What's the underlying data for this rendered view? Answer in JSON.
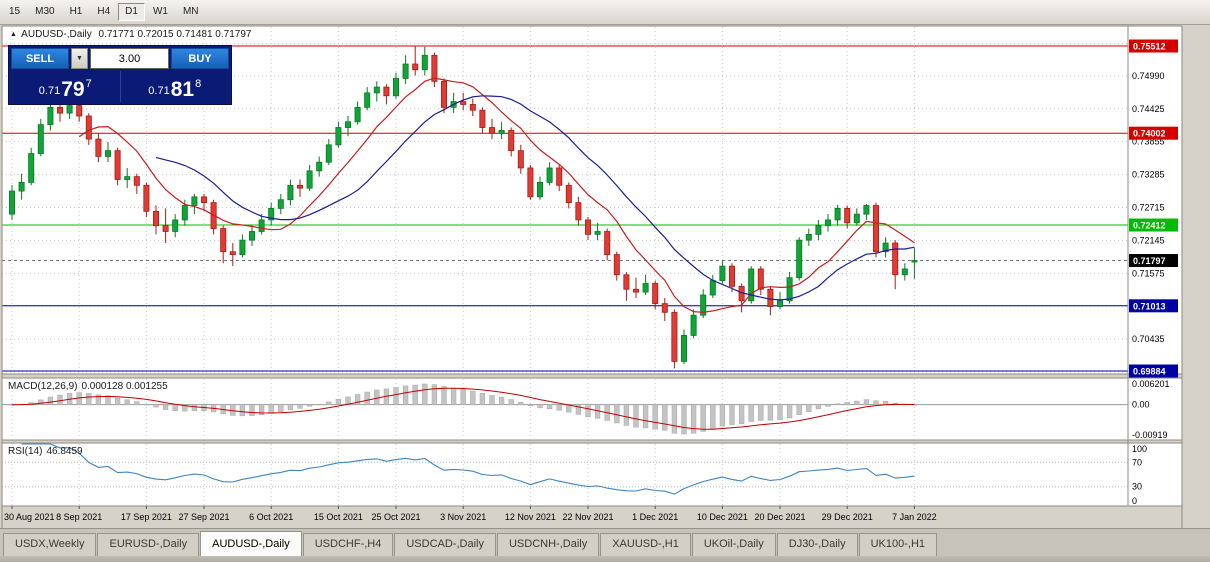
{
  "toolbar": {
    "timeframes": [
      {
        "label": "15",
        "active": false
      },
      {
        "label": "M30",
        "active": false
      },
      {
        "label": "H1",
        "active": false
      },
      {
        "label": "H4",
        "active": false
      },
      {
        "label": "D1",
        "active": true
      },
      {
        "label": "W1",
        "active": false
      },
      {
        "label": "MN",
        "active": false
      }
    ]
  },
  "chart": {
    "title_marker": "▲",
    "title": "AUDUSD-,Daily",
    "ohlc_text": "0.71771 0.72015 0.71481 0.71797",
    "hlines": [
      {
        "value": 0.75512,
        "label": "0.75512",
        "color": "#d40000"
      },
      {
        "value": 0.74002,
        "label": "0.74002",
        "color": "#d40000"
      },
      {
        "value": 0.72412,
        "label": "0.72412",
        "color": "#00bb00"
      },
      {
        "value": 0.71013,
        "label": "0.71013",
        "color": "#0000a0"
      },
      {
        "value": 0.69884,
        "label": "0.69884",
        "color": "#0000a0"
      }
    ],
    "bid": {
      "value": 0.71797,
      "label": "0.71797",
      "color": "#000000"
    },
    "price_axis": {
      "labels": [
        "0.74990",
        "0.74425",
        "0.73855",
        "0.73285",
        "0.72715",
        "0.72145",
        "0.71575",
        "0.70435"
      ]
    },
    "time_axis": {
      "labels": [
        {
          "i": 0,
          "label": "30 Aug 2021"
        },
        {
          "i": 7,
          "label": "8 Sep 2021"
        },
        {
          "i": 14,
          "label": "17 Sep 2021"
        },
        {
          "i": 20,
          "label": "27 Sep 2021"
        },
        {
          "i": 27,
          "label": "6 Oct 2021"
        },
        {
          "i": 34,
          "label": "15 Oct 2021"
        },
        {
          "i": 40,
          "label": "25 Oct 2021"
        },
        {
          "i": 47,
          "label": "3 Nov 2021"
        },
        {
          "i": 54,
          "label": "12 Nov 2021"
        },
        {
          "i": 60,
          "label": "22 Nov 2021"
        },
        {
          "i": 67,
          "label": "1 Dec 2021"
        },
        {
          "i": 74,
          "label": "10 Dec 2021"
        },
        {
          "i": 80,
          "label": "20 Dec 2021"
        },
        {
          "i": 87,
          "label": "29 Dec 2021"
        },
        {
          "i": 94,
          "label": "7 Jan 2022"
        }
      ]
    }
  },
  "trade_panel": {
    "sell_label": "SELL",
    "buy_label": "BUY",
    "volume": "3.00",
    "sell_price": {
      "prefix": "0.71",
      "big": "79",
      "sup": "7"
    },
    "buy_price": {
      "prefix": "0.71",
      "big": "81",
      "sup": "8"
    }
  },
  "macd_panel": {
    "label": "MACD(12,26,9)",
    "values": "0.000128 0.001255",
    "axis_top": "0.006201",
    "axis_mid": "0.00",
    "axis_bottom": "-0.00919"
  },
  "rsi_panel": {
    "label": "RSI(14)",
    "value": "46.8459",
    "axis": [
      "100",
      "70",
      "30",
      "0"
    ],
    "levels": [
      70,
      30
    ]
  },
  "tabs": [
    {
      "label": "USDX,Weekly",
      "active": false
    },
    {
      "label": "EURUSD-,Daily",
      "active": false
    },
    {
      "label": "AUDUSD-,Daily",
      "active": true
    },
    {
      "label": "USDCHF-,H4",
      "active": false
    },
    {
      "label": "USDCAD-,Daily",
      "active": false
    },
    {
      "label": "USDCNH-,Daily",
      "active": false
    },
    {
      "label": "XAUUSD-,H1",
      "active": false
    },
    {
      "label": "UKOil-,Daily",
      "active": false
    },
    {
      "label": "DJ30-,Daily",
      "active": false
    },
    {
      "label": "UK100-,H1",
      "active": false
    }
  ],
  "chart_data": {
    "type": "candlestick",
    "symbol": "AUDUSD",
    "timeframe": "Daily",
    "x_range": [
      "30 Aug 2021",
      "7 Jan 2022"
    ],
    "y_range": [
      0.69832,
      0.75858
    ],
    "up_color": "#11a437",
    "up_stroke": "#0a7a26",
    "down_color": "#e23b34",
    "down_stroke": "#a81d18",
    "ma_fast": {
      "type": "sma",
      "period": 8,
      "color": "#c61f1f"
    },
    "ma_slow": {
      "type": "sma",
      "period": 16,
      "color": "#1c1c96"
    },
    "macd": {
      "fast": 12,
      "slow": 26,
      "signal": 9,
      "hist_color": "#c4c4c4",
      "hist_stroke": "#a5a5a5",
      "signal_color": "#c40000"
    },
    "rsi": {
      "period": 14,
      "color": "#3d85c6"
    },
    "candles": [
      [
        0.726,
        0.731,
        0.725,
        0.73
      ],
      [
        0.73,
        0.733,
        0.7285,
        0.7315
      ],
      [
        0.7315,
        0.7375,
        0.731,
        0.7365
      ],
      [
        0.7365,
        0.7425,
        0.736,
        0.7415
      ],
      [
        0.7415,
        0.746,
        0.7405,
        0.7445
      ],
      [
        0.7445,
        0.7455,
        0.742,
        0.7435
      ],
      [
        0.7435,
        0.7455,
        0.7425,
        0.7448
      ],
      [
        0.7448,
        0.746,
        0.742,
        0.743
      ],
      [
        0.743,
        0.7435,
        0.738,
        0.739
      ],
      [
        0.739,
        0.74,
        0.735,
        0.736
      ],
      [
        0.736,
        0.7385,
        0.735,
        0.737
      ],
      [
        0.737,
        0.7375,
        0.731,
        0.732
      ],
      [
        0.732,
        0.734,
        0.7305,
        0.7325
      ],
      [
        0.7325,
        0.733,
        0.7295,
        0.731
      ],
      [
        0.731,
        0.7315,
        0.7255,
        0.7265
      ],
      [
        0.7265,
        0.7275,
        0.7225,
        0.724
      ],
      [
        0.724,
        0.727,
        0.721,
        0.723
      ],
      [
        0.723,
        0.726,
        0.722,
        0.725
      ],
      [
        0.725,
        0.7285,
        0.724,
        0.7275
      ],
      [
        0.7275,
        0.7295,
        0.726,
        0.729
      ],
      [
        0.729,
        0.7295,
        0.7265,
        0.728
      ],
      [
        0.728,
        0.7285,
        0.7225,
        0.7235
      ],
      [
        0.7235,
        0.724,
        0.7175,
        0.7195
      ],
      [
        0.7195,
        0.721,
        0.717,
        0.719
      ],
      [
        0.719,
        0.7225,
        0.7185,
        0.7215
      ],
      [
        0.7215,
        0.724,
        0.7205,
        0.723
      ],
      [
        0.723,
        0.726,
        0.7225,
        0.725
      ],
      [
        0.725,
        0.728,
        0.724,
        0.727
      ],
      [
        0.727,
        0.7295,
        0.726,
        0.7285
      ],
      [
        0.7285,
        0.732,
        0.7275,
        0.731
      ],
      [
        0.731,
        0.732,
        0.729,
        0.7305
      ],
      [
        0.7305,
        0.7345,
        0.73,
        0.7335
      ],
      [
        0.7335,
        0.736,
        0.7325,
        0.735
      ],
      [
        0.735,
        0.739,
        0.7345,
        0.738
      ],
      [
        0.738,
        0.742,
        0.7375,
        0.741
      ],
      [
        0.741,
        0.743,
        0.7395,
        0.742
      ],
      [
        0.742,
        0.7455,
        0.7415,
        0.7445
      ],
      [
        0.7445,
        0.748,
        0.744,
        0.747
      ],
      [
        0.747,
        0.749,
        0.7455,
        0.748
      ],
      [
        0.748,
        0.7485,
        0.745,
        0.7465
      ],
      [
        0.7465,
        0.7505,
        0.746,
        0.7495
      ],
      [
        0.7495,
        0.7535,
        0.7485,
        0.752
      ],
      [
        0.752,
        0.75512,
        0.75,
        0.751
      ],
      [
        0.751,
        0.755,
        0.75,
        0.7535
      ],
      [
        0.7535,
        0.754,
        0.748,
        0.749
      ],
      [
        0.749,
        0.7495,
        0.7435,
        0.7445
      ],
      [
        0.7445,
        0.747,
        0.7435,
        0.7455
      ],
      [
        0.7455,
        0.747,
        0.744,
        0.745
      ],
      [
        0.745,
        0.746,
        0.743,
        0.744
      ],
      [
        0.744,
        0.7445,
        0.74,
        0.741
      ],
      [
        0.741,
        0.7425,
        0.739,
        0.74
      ],
      [
        0.74,
        0.742,
        0.739,
        0.7405
      ],
      [
        0.7405,
        0.741,
        0.736,
        0.737
      ],
      [
        0.737,
        0.738,
        0.733,
        0.734
      ],
      [
        0.734,
        0.7345,
        0.7285,
        0.729
      ],
      [
        0.729,
        0.7325,
        0.7285,
        0.7315
      ],
      [
        0.7315,
        0.735,
        0.731,
        0.734
      ],
      [
        0.734,
        0.7345,
        0.73,
        0.731
      ],
      [
        0.731,
        0.7315,
        0.727,
        0.728
      ],
      [
        0.728,
        0.729,
        0.724,
        0.725
      ],
      [
        0.725,
        0.7255,
        0.7215,
        0.7225
      ],
      [
        0.7225,
        0.7245,
        0.7215,
        0.723
      ],
      [
        0.723,
        0.7235,
        0.718,
        0.719
      ],
      [
        0.719,
        0.7195,
        0.7145,
        0.7155
      ],
      [
        0.7155,
        0.716,
        0.711,
        0.713
      ],
      [
        0.713,
        0.715,
        0.7115,
        0.7125
      ],
      [
        0.7125,
        0.7155,
        0.712,
        0.714
      ],
      [
        0.714,
        0.7145,
        0.7095,
        0.7105
      ],
      [
        0.7105,
        0.7115,
        0.7075,
        0.709
      ],
      [
        0.709,
        0.7095,
        0.6993,
        0.7005
      ],
      [
        0.7005,
        0.706,
        0.7,
        0.705
      ],
      [
        0.705,
        0.7095,
        0.7045,
        0.7085
      ],
      [
        0.7085,
        0.713,
        0.708,
        0.712
      ],
      [
        0.712,
        0.7155,
        0.7115,
        0.7145
      ],
      [
        0.7145,
        0.718,
        0.714,
        0.717
      ],
      [
        0.717,
        0.7175,
        0.7125,
        0.7135
      ],
      [
        0.7135,
        0.714,
        0.709,
        0.711
      ],
      [
        0.711,
        0.717,
        0.7105,
        0.7165
      ],
      [
        0.7165,
        0.717,
        0.712,
        0.713
      ],
      [
        0.713,
        0.7135,
        0.7085,
        0.71
      ],
      [
        0.71,
        0.7125,
        0.7095,
        0.711
      ],
      [
        0.711,
        0.716,
        0.7105,
        0.715
      ],
      [
        0.715,
        0.722,
        0.7145,
        0.7215
      ],
      [
        0.7215,
        0.7235,
        0.7205,
        0.7225
      ],
      [
        0.7225,
        0.725,
        0.7215,
        0.724
      ],
      [
        0.724,
        0.726,
        0.723,
        0.725
      ],
      [
        0.725,
        0.7276,
        0.724,
        0.727
      ],
      [
        0.727,
        0.7275,
        0.7235,
        0.7245
      ],
      [
        0.7245,
        0.727,
        0.724,
        0.726
      ],
      [
        0.726,
        0.7278,
        0.725,
        0.7275
      ],
      [
        0.7275,
        0.728,
        0.7185,
        0.7195
      ],
      [
        0.7195,
        0.722,
        0.7185,
        0.721
      ],
      [
        0.721,
        0.7215,
        0.713,
        0.7155
      ],
      [
        0.7155,
        0.7175,
        0.7145,
        0.7165
      ],
      [
        0.71771,
        0.72015,
        0.71481,
        0.71797
      ]
    ]
  }
}
